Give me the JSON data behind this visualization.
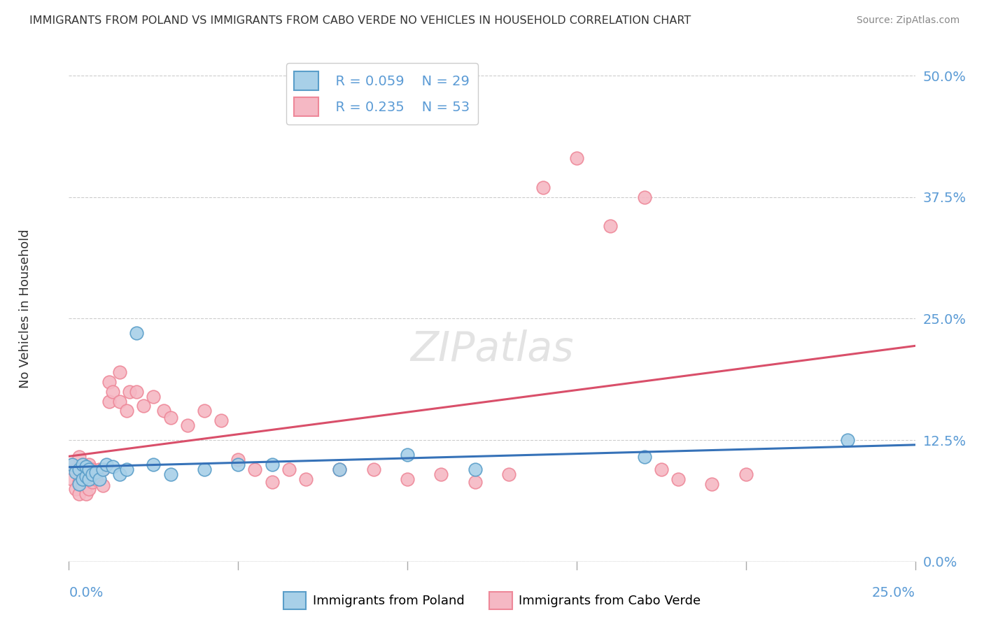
{
  "title": "IMMIGRANTS FROM POLAND VS IMMIGRANTS FROM CABO VERDE NO VEHICLES IN HOUSEHOLD CORRELATION CHART",
  "source": "Source: ZipAtlas.com",
  "ylabel": "No Vehicles in Household",
  "ytick_values": [
    0.0,
    0.125,
    0.25,
    0.375,
    0.5
  ],
  "ytick_labels": [
    "0.0%",
    "12.5%",
    "25.0%",
    "37.5%",
    "50.0%"
  ],
  "xlim": [
    0.0,
    0.25
  ],
  "ylim": [
    0.0,
    0.52
  ],
  "legend_poland_r": "R = 0.059",
  "legend_poland_n": "N = 29",
  "legend_caboverde_r": "R = 0.235",
  "legend_caboverde_n": "N = 53",
  "color_poland_fill": "#A8D0E8",
  "color_poland_edge": "#5A9EC9",
  "color_caboverde_fill": "#F5B8C4",
  "color_caboverde_edge": "#EE8899",
  "color_poland_line": "#3672B8",
  "color_caboverde_line": "#D94F6A",
  "background_color": "#FFFFFF",
  "grid_color": "#CCCCCC",
  "title_color": "#333333",
  "axis_label_color": "#5B9BD5",
  "watermark_color": "#CCCCCC",
  "poland_x": [
    0.001,
    0.002,
    0.003,
    0.003,
    0.004,
    0.004,
    0.005,
    0.005,
    0.006,
    0.006,
    0.007,
    0.008,
    0.009,
    0.01,
    0.011,
    0.013,
    0.015,
    0.017,
    0.02,
    0.025,
    0.03,
    0.04,
    0.05,
    0.06,
    0.08,
    0.1,
    0.12,
    0.17,
    0.23
  ],
  "poland_y": [
    0.1,
    0.092,
    0.08,
    0.095,
    0.085,
    0.1,
    0.088,
    0.098,
    0.085,
    0.095,
    0.09,
    0.092,
    0.085,
    0.095,
    0.1,
    0.098,
    0.09,
    0.095,
    0.235,
    0.1,
    0.09,
    0.095,
    0.1,
    0.1,
    0.095,
    0.11,
    0.095,
    0.108,
    0.125
  ],
  "caboverde_x": [
    0.001,
    0.001,
    0.002,
    0.002,
    0.003,
    0.003,
    0.003,
    0.004,
    0.004,
    0.005,
    0.005,
    0.006,
    0.006,
    0.007,
    0.007,
    0.008,
    0.009,
    0.01,
    0.01,
    0.012,
    0.012,
    0.013,
    0.015,
    0.015,
    0.017,
    0.018,
    0.02,
    0.022,
    0.025,
    0.028,
    0.03,
    0.035,
    0.04,
    0.045,
    0.05,
    0.055,
    0.06,
    0.065,
    0.07,
    0.08,
    0.09,
    0.1,
    0.11,
    0.12,
    0.13,
    0.14,
    0.15,
    0.16,
    0.17,
    0.175,
    0.18,
    0.19,
    0.2
  ],
  "caboverde_y": [
    0.085,
    0.1,
    0.075,
    0.095,
    0.07,
    0.082,
    0.108,
    0.078,
    0.095,
    0.07,
    0.09,
    0.075,
    0.1,
    0.082,
    0.095,
    0.085,
    0.095,
    0.078,
    0.095,
    0.165,
    0.185,
    0.175,
    0.165,
    0.195,
    0.155,
    0.175,
    0.175,
    0.16,
    0.17,
    0.155,
    0.148,
    0.14,
    0.155,
    0.145,
    0.105,
    0.095,
    0.082,
    0.095,
    0.085,
    0.095,
    0.095,
    0.085,
    0.09,
    0.082,
    0.09,
    0.385,
    0.415,
    0.345,
    0.375,
    0.095,
    0.085,
    0.08,
    0.09
  ]
}
